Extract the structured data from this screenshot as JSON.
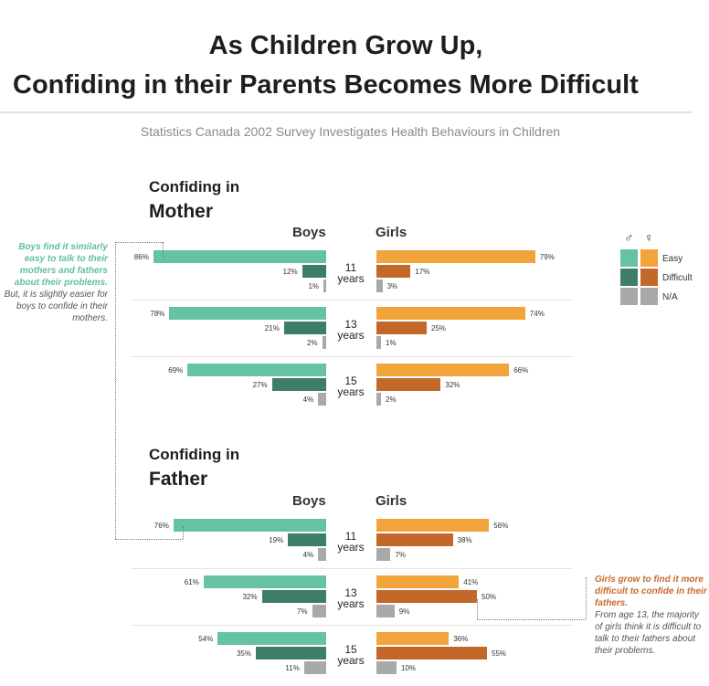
{
  "header": {
    "title_line1": "As Children Grow Up,",
    "title_line2": "Confiding in their Parents Becomes More Difficult",
    "subtitle": "Statistics Canada 2002 Survey Investigates Health Behaviours in Children"
  },
  "colors": {
    "boys_easy": "#66c2a5",
    "boys_difficult": "#3e7d66",
    "girls_easy": "#f2a33a",
    "girls_difficult": "#c4682a",
    "na": "#a9a9a9"
  },
  "column_headers": {
    "boys": "Boys",
    "girls": "Girls"
  },
  "legend": {
    "male_symbol": "♂",
    "female_symbol": "♀",
    "items": [
      {
        "label": "Easy",
        "key": "easy"
      },
      {
        "label": "Difficult",
        "key": "difficult"
      },
      {
        "label": "N/A",
        "key": "na"
      }
    ]
  },
  "notes": {
    "mother_em": "Boys find it similarly easy to talk to their mothers and fathers about their problems.",
    "mother_plain": "But, it is slightly easier for boys to confide in their mothers.",
    "father_em": "Girls grow to find it more difficult to confide in their fathers.",
    "father_plain": "From age 13, the majority of girls think it is difficult to talk to their fathers about their problems."
  },
  "chart_data": [
    {
      "type": "bar",
      "title_small": "Confiding in",
      "title_big": "Mother",
      "ages": [
        "11 years",
        "13 years",
        "15 years"
      ],
      "age_num": [
        "11",
        "13",
        "15"
      ],
      "age_word": "years",
      "boys": {
        "easy": [
          86,
          78,
          69
        ],
        "difficult": [
          12,
          21,
          27
        ],
        "na": [
          1,
          2,
          4
        ]
      },
      "girls": {
        "easy": [
          79,
          74,
          66
        ],
        "difficult": [
          17,
          25,
          32
        ],
        "na": [
          3,
          1,
          2
        ]
      }
    },
    {
      "type": "bar",
      "title_small": "Confiding in",
      "title_big": "Father",
      "ages": [
        "11 years",
        "13 years",
        "15 years"
      ],
      "age_num": [
        "11",
        "13",
        "15"
      ],
      "age_word": "years",
      "boys": {
        "easy": [
          76,
          61,
          54
        ],
        "difficult": [
          19,
          32,
          35
        ],
        "na": [
          4,
          7,
          11
        ]
      },
      "girls": {
        "easy": [
          56,
          41,
          36
        ],
        "difficult": [
          38,
          50,
          55
        ],
        "na": [
          7,
          9,
          10
        ]
      }
    }
  ]
}
